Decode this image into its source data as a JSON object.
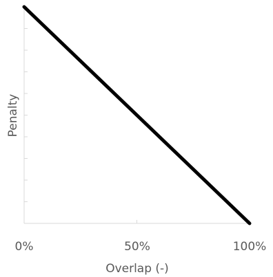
{
  "chart_data": {
    "type": "line",
    "title": "",
    "xlabel": "Overlap (-)",
    "ylabel": "Penalty",
    "x_tick_labels": [
      "0%",
      "50%",
      "100%"
    ],
    "x_ticks": [
      0,
      50,
      100
    ],
    "xlim": [
      0,
      100
    ],
    "ylim": [
      0,
      10
    ],
    "y_tick_count": 10,
    "y_tick_labels_shown": false,
    "grid": false,
    "legend": "none",
    "series": [
      {
        "x": [
          0,
          100
        ],
        "y": [
          10,
          0
        ],
        "color": "#000000"
      }
    ]
  }
}
